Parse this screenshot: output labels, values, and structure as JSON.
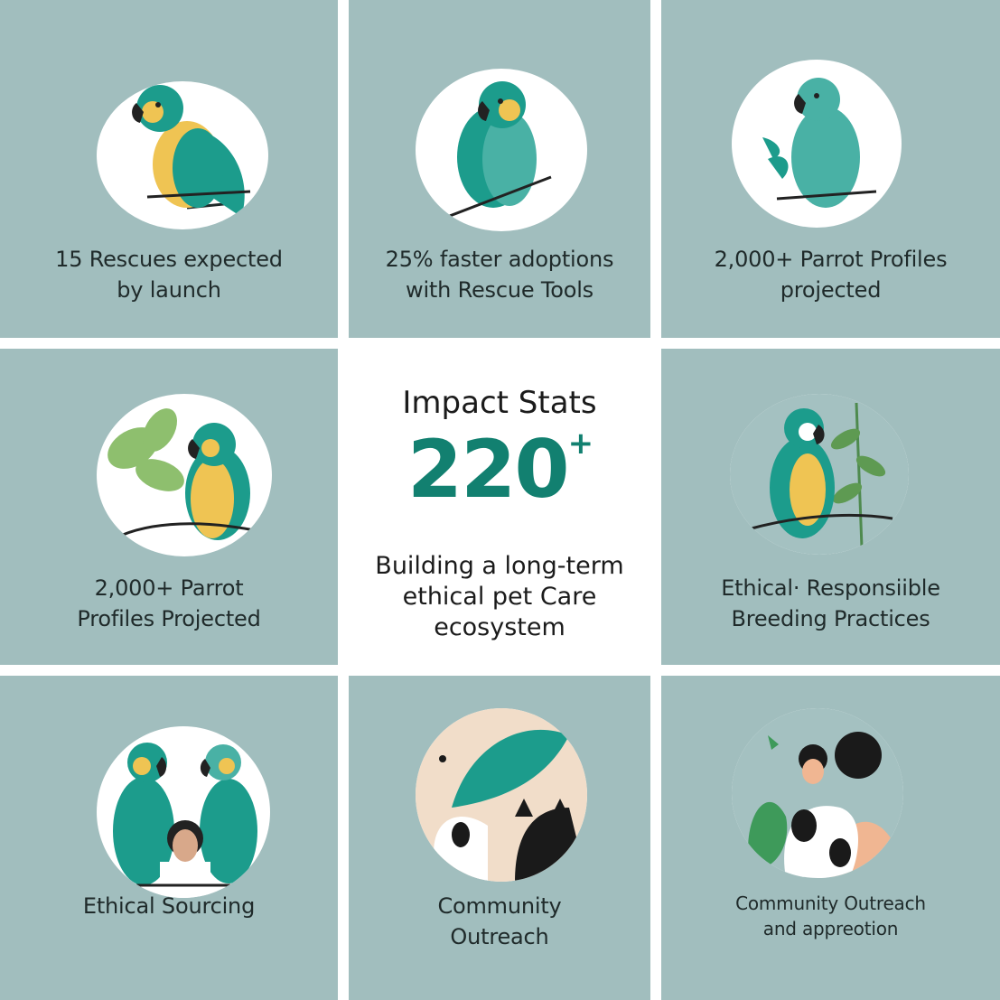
{
  "tiles": [
    {
      "caption": [
        "15 Rescues expected",
        "by launch"
      ]
    },
    {
      "caption": [
        "25% faster adoptions",
        "with Rescue Tools"
      ]
    },
    {
      "caption": [
        "2,000+ Parrot Profiles",
        "projected"
      ]
    },
    {
      "caption": [
        "2,000+ Parrot",
        "Profiles Projected"
      ]
    },
    {
      "caption": [
        "Ethical· Responsiible",
        "Breeding Practices"
      ]
    },
    {
      "caption": [
        "Ethical Sourcing"
      ]
    },
    {
      "caption": [
        "Community",
        "Outreach"
      ]
    },
    {
      "caption": [
        "Community Outreach",
        "and appreotion"
      ]
    }
  ],
  "center": {
    "title": "Impact Stats",
    "number": "220",
    "number_suffix": "+",
    "description": [
      "Building a long-term",
      "ethical pet Care",
      "ecosystem"
    ]
  },
  "colors": {
    "tile_background": "#a1bebe",
    "accent_teal": "#128070",
    "parrot_teal": "#1c9c8c",
    "parrot_yellow": "#efc453",
    "leaf_green": "#8ebf6e"
  },
  "icons": [
    "parrot-teal-yellow-icon",
    "parrot-teal-icon",
    "parrot-with-leaves-icon",
    "parrot-on-branch-icon",
    "parrot-with-foliage-icon",
    "parrots-with-person-icon",
    "bird-with-dog-cat-icon",
    "people-with-dog-icon"
  ]
}
